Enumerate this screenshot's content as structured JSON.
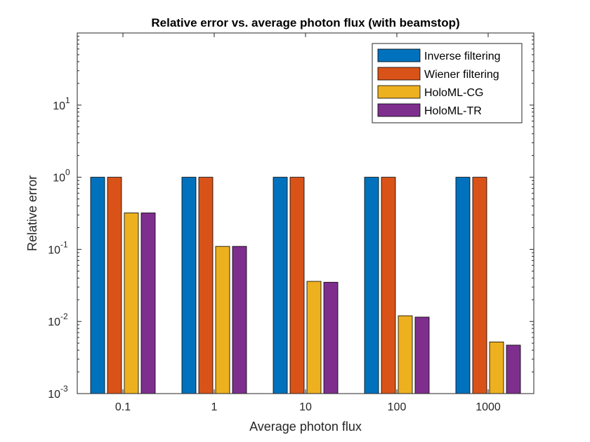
{
  "chart_data": {
    "type": "bar",
    "title": "Relative error vs. average photon flux (with beamstop)",
    "xlabel": "Average photon flux",
    "ylabel": "Relative error",
    "yscale": "log",
    "ylim": [
      0.001,
      100
    ],
    "yticks": [
      {
        "base": "10",
        "exp": "-3"
      },
      {
        "base": "10",
        "exp": "-2"
      },
      {
        "base": "10",
        "exp": "-1"
      },
      {
        "base": "10",
        "exp": "0"
      },
      {
        "base": "10",
        "exp": "1"
      }
    ],
    "categories": [
      "0.1",
      "1",
      "10",
      "100",
      "1000"
    ],
    "legend_position": "top-right",
    "grid": false,
    "series": [
      {
        "name": "Inverse filtering",
        "color": "#0072BD",
        "values": [
          1,
          1,
          1,
          1,
          1
        ]
      },
      {
        "name": "Wiener filtering",
        "color": "#D95319",
        "values": [
          1,
          1,
          1,
          1,
          1
        ]
      },
      {
        "name": "HoloML-CG",
        "color": "#EDB120",
        "values": [
          0.32,
          0.11,
          0.036,
          0.012,
          0.0052
        ]
      },
      {
        "name": "HoloML-TR",
        "color": "#7E2F8E",
        "values": [
          0.32,
          0.11,
          0.035,
          0.0115,
          0.0047
        ]
      }
    ]
  }
}
